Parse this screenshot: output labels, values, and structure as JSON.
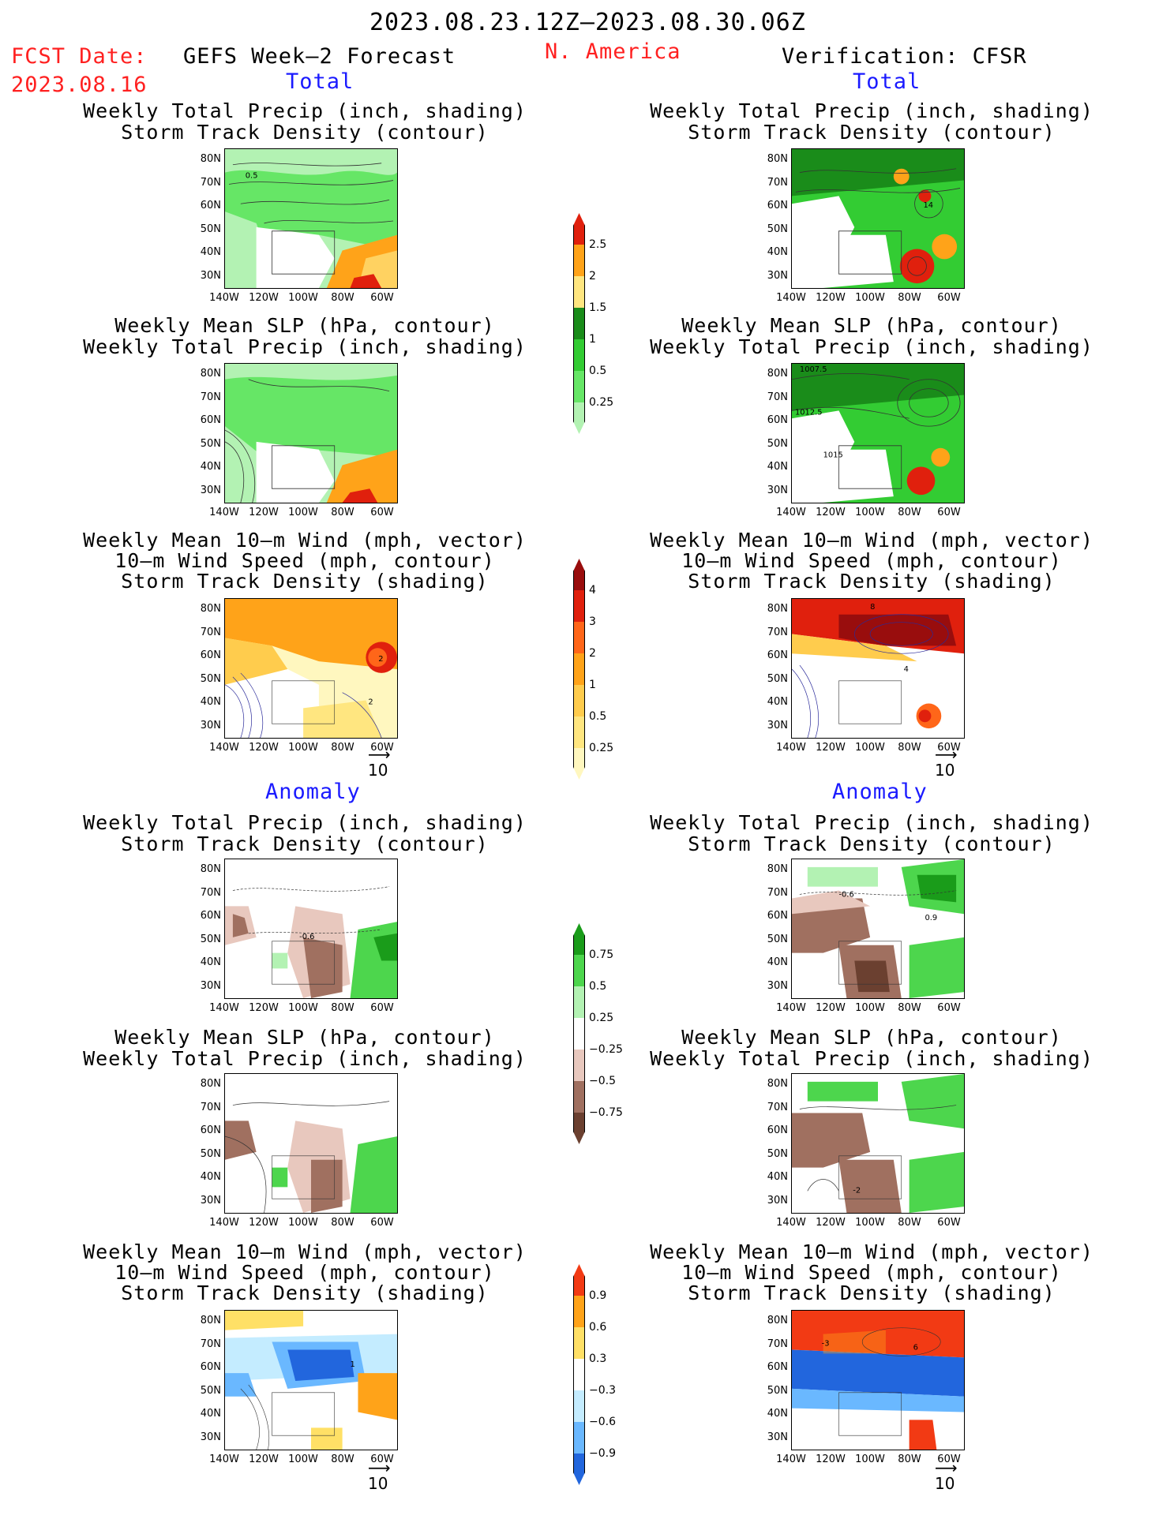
{
  "header": {
    "period": "2023.08.23.12Z—2023.08.30.06Z",
    "fcst_label": "FCST Date:",
    "fcst_date": "2023.08.16",
    "left_title": "GEFS Week—2 Forecast",
    "region": "N. America",
    "right_title": "Verification: CFSR"
  },
  "sections": {
    "total": "Total",
    "anomaly": "Anomaly"
  },
  "panel_titles": {
    "precip_storm": [
      "Weekly Total Precip (inch, shading)",
      "Storm Track Density (contour)"
    ],
    "slp_precip": [
      "Weekly Mean SLP (hPa, contour)",
      "Weekly Total Precip (inch, shading)"
    ],
    "wind_storm": [
      "Weekly Mean 10—m Wind (mph, vector)",
      "10—m Wind Speed (mph, contour)",
      "Storm Track Density (shading)"
    ]
  },
  "axes": {
    "lat_labels": [
      "80N",
      "70N",
      "60N",
      "50N",
      "40N",
      "30N"
    ],
    "lon_labels": [
      "140W",
      "120W",
      "100W",
      "80W",
      "60W"
    ]
  },
  "vector_ref": "10",
  "contour_labels": {
    "fc_total_precip": "0.5",
    "ver_total_precip": "14",
    "ver_slp_1": "1007.5",
    "ver_slp_2": "1012.5",
    "ver_slp_3": "1015",
    "fc_total_wind_1": "2",
    "fc_total_wind_2": "2",
    "ver_total_wind_1": "8",
    "ver_total_wind_2": "4",
    "fc_anom_precip": "-0.6",
    "ver_anom_precip_1": "-0.6",
    "ver_anom_precip_2": "0.9",
    "ver_anom_slp": "-2",
    "fc_anom_wind": "1",
    "ver_anom_wind_1": "-3",
    "ver_anom_wind_2": "6"
  },
  "colorbars": {
    "precip_total": {
      "labels": [
        "2.5",
        "2",
        "1.5",
        "1",
        "0.5",
        "0.25"
      ],
      "colors": [
        "#e0200d",
        "#ffa319",
        "#ffe680",
        "#1a8c1a",
        "#33cc33",
        "#66e666",
        "#b3f2b3"
      ]
    },
    "storm_total": {
      "labels": [
        "4",
        "3",
        "2",
        "1",
        "0.5",
        "0.25"
      ],
      "colors": [
        "#990d0d",
        "#e0200d",
        "#ff6619",
        "#ffa319",
        "#ffcc4d",
        "#ffe680",
        "#fff7bf"
      ]
    },
    "precip_anom": {
      "labels": [
        "0.75",
        "0.5",
        "0.25",
        "−0.25",
        "−0.5",
        "−0.75"
      ],
      "colors": [
        "#1a9c1a",
        "#4dd64d",
        "#b3f2b3",
        "#ffffff",
        "#e8c8be",
        "#a07060",
        "#6b4030"
      ]
    },
    "storm_anom": {
      "labels": [
        "0.9",
        "0.6",
        "0.3",
        "−0.3",
        "−0.6",
        "−0.9"
      ],
      "colors": [
        "#f23a14",
        "#ffa319",
        "#ffe066",
        "#ffffff",
        "#c4ecff",
        "#6ab8ff",
        "#2266dd"
      ]
    }
  }
}
